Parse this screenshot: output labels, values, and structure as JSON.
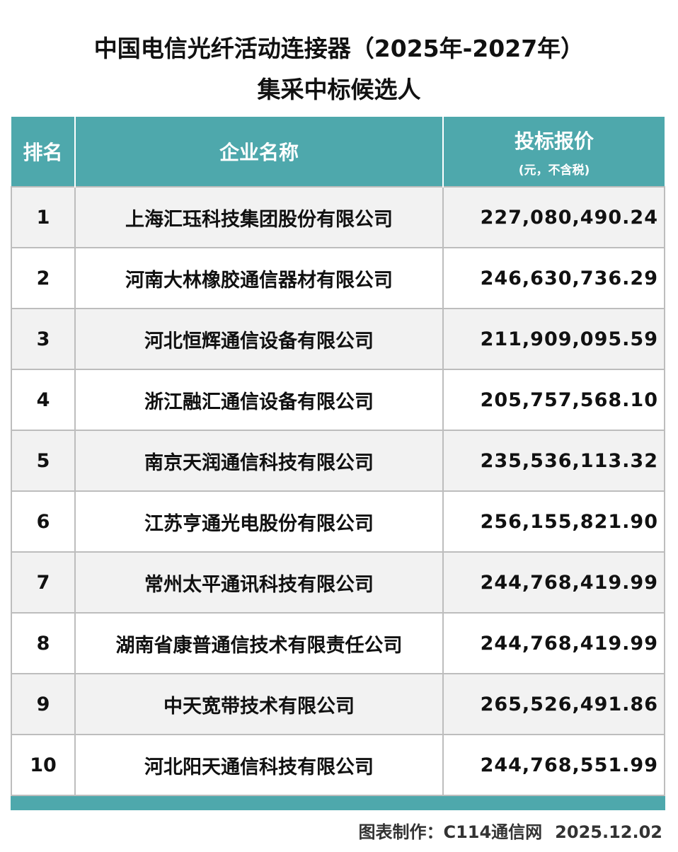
{
  "title": {
    "line1": "中国电信光纤活动连接器（2025年-2027年）",
    "line2": "集采中标候选人"
  },
  "colors": {
    "header": "#4ea8ac",
    "row_alt": "#f2f2f2"
  },
  "table": {
    "headers": {
      "rank": "排名",
      "company": "企业名称",
      "price": "投标报价",
      "price_unit": "(元，不含税)"
    },
    "rows": [
      {
        "rank": "1",
        "company": "上海汇珏科技集团股份有限公司",
        "price": "227,080,490.24"
      },
      {
        "rank": "2",
        "company": "河南大林橡胶通信器材有限公司",
        "price": "246,630,736.29"
      },
      {
        "rank": "3",
        "company": "河北恒辉通信设备有限公司",
        "price": "211,909,095.59"
      },
      {
        "rank": "4",
        "company": "浙江融汇通信设备有限公司",
        "price": "205,757,568.10"
      },
      {
        "rank": "5",
        "company": "南京天润通信科技有限公司",
        "price": "235,536,113.32"
      },
      {
        "rank": "6",
        "company": "江苏亨通光电股份有限公司",
        "price": "256,155,821.90"
      },
      {
        "rank": "7",
        "company": "常州太平通讯科技有限公司",
        "price": "244,768,419.99"
      },
      {
        "rank": "8",
        "company": "湖南省康普通信技术有限责任公司",
        "price": "244,768,419.99"
      },
      {
        "rank": "9",
        "company": "中天宽带技术有限公司",
        "price": "265,526,491.86"
      },
      {
        "rank": "10",
        "company": "河北阳天通信科技有限公司",
        "price": "244,768,551.99"
      }
    ]
  },
  "footer": {
    "credit": "图表制作：C114通信网",
    "date": "2025.12.02"
  }
}
